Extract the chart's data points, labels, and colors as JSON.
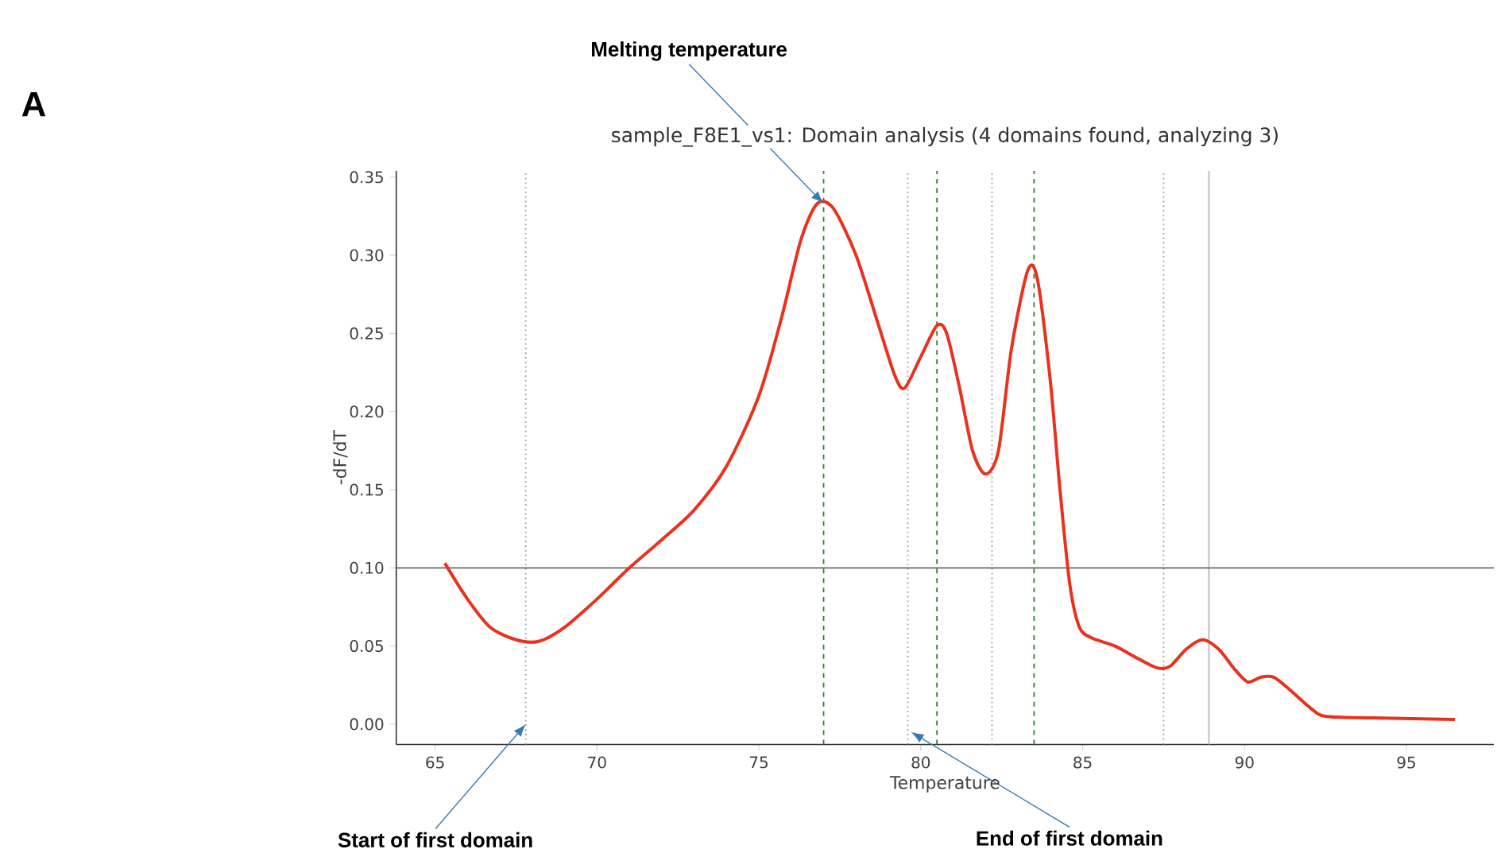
{
  "chart_data": {
    "type": "line",
    "title": "sample_F8E1_vs1: Domain analysis (4 domains found, analyzing 3)",
    "xlabel": "Temperature",
    "ylabel": "-dF/dT",
    "xlim": [
      63.8,
      97.7
    ],
    "ylim": [
      -0.013,
      0.354
    ],
    "xticks": [
      65,
      70,
      75,
      80,
      85,
      90,
      95
    ],
    "yticks": [
      {
        "value": 0,
        "label": "0.00"
      },
      {
        "value": 0.05,
        "label": "0.05"
      },
      {
        "value": 0.1,
        "label": "0.10"
      },
      {
        "value": 0.15,
        "label": "0.15"
      },
      {
        "value": 0.2,
        "label": "0.20"
      },
      {
        "value": 0.25,
        "label": "0.25"
      },
      {
        "value": 0.3,
        "label": "0.30"
      },
      {
        "value": 0.35,
        "label": "0.35"
      }
    ],
    "x": [
      65.3,
      66,
      66.7,
      67.5,
      68.2,
      69,
      70,
      71,
      72,
      73,
      74,
      75,
      75.7,
      76.3,
      76.8,
      77.3,
      78,
      78.7,
      79.2,
      79.5,
      80,
      80.5,
      80.8,
      81.2,
      81.6,
      82,
      82.4,
      82.8,
      83.3,
      83.6,
      84,
      84.3,
      84.6,
      84.9,
      85.3,
      86,
      86.7,
      87.3,
      87.7,
      88.2,
      88.7,
      89.2,
      89.7,
      90.1,
      90.5,
      90.9,
      91.4,
      92,
      92.5,
      94,
      96.5
    ],
    "series": [
      {
        "color": "#e8321e",
        "values": [
          0.103,
          0.08,
          0.062,
          0.054,
          0.053,
          0.062,
          0.08,
          0.1,
          0.118,
          0.137,
          0.165,
          0.21,
          0.26,
          0.31,
          0.333,
          0.33,
          0.3,
          0.255,
          0.223,
          0.215,
          0.235,
          0.255,
          0.25,
          0.215,
          0.175,
          0.16,
          0.175,
          0.24,
          0.29,
          0.285,
          0.22,
          0.15,
          0.09,
          0.062,
          0.055,
          0.05,
          0.042,
          0.036,
          0.037,
          0.048,
          0.054,
          0.048,
          0.035,
          0.027,
          0.03,
          0.03,
          0.022,
          0.011,
          0.005,
          0.004,
          0.003
        ]
      }
    ],
    "ref_lines": [
      {
        "axis": "x",
        "value": 67.8,
        "color": "#9a9ab4",
        "line_style": "dotted"
      },
      {
        "axis": "x",
        "value": 77.0,
        "color": "#2e7d32",
        "line_style": "dashed"
      },
      {
        "axis": "x",
        "value": 79.6,
        "color": "#9a9ab4",
        "line_style": "dotted"
      },
      {
        "axis": "x",
        "value": 80.5,
        "color": "#2e7d32",
        "line_style": "dashed"
      },
      {
        "axis": "x",
        "value": 82.2,
        "color": "#9a9ab4",
        "line_style": "dotted"
      },
      {
        "axis": "x",
        "value": 83.5,
        "color": "#2e7d32",
        "line_style": "dashed"
      },
      {
        "axis": "x",
        "value": 87.5,
        "color": "#9a9ab4",
        "line_style": "dotted"
      },
      {
        "axis": "x",
        "value": 88.9,
        "color": "#b8b8c0",
        "line_style": "solid"
      },
      {
        "axis": "y",
        "value": 0.1,
        "color": "#6a6a6a",
        "line_style": "solid"
      }
    ],
    "annotations": [
      "A",
      {
        "text": "Melting temperature",
        "x": 77.0,
        "y": 0.333
      },
      {
        "text": "Start of first domain",
        "x": 67.8,
        "y": 0.0
      },
      {
        "text": "End of first domain",
        "x": 79.7,
        "y": -0.005
      }
    ],
    "grid": false,
    "marker": "none",
    "line_style": "solid"
  }
}
